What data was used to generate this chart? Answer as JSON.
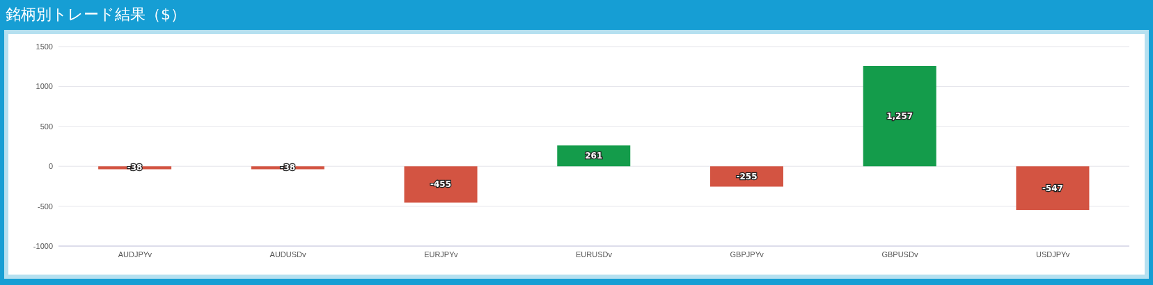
{
  "chart_data": {
    "type": "bar",
    "title": "銘柄別トレード結果（$）",
    "categories": [
      "AUDJPYv",
      "AUDUSDv",
      "EURJPYv",
      "EURUSDv",
      "GBPJPYv",
      "GBPUSDv",
      "USDJPYv"
    ],
    "values": [
      -38,
      -38,
      -455,
      261,
      -255,
      1257,
      -547
    ],
    "colors": [
      "#d35442",
      "#d35442",
      "#d35442",
      "#149c4b",
      "#d35442",
      "#149c4b",
      "#d35442"
    ],
    "value_labels": [
      "-38",
      "-38",
      "-455",
      "261",
      "-255",
      "1,257",
      "-547"
    ],
    "ylim": [
      -1000,
      1500
    ],
    "yticks": [
      -1000,
      -500,
      0,
      500,
      1000,
      1500
    ],
    "grid": "y"
  }
}
